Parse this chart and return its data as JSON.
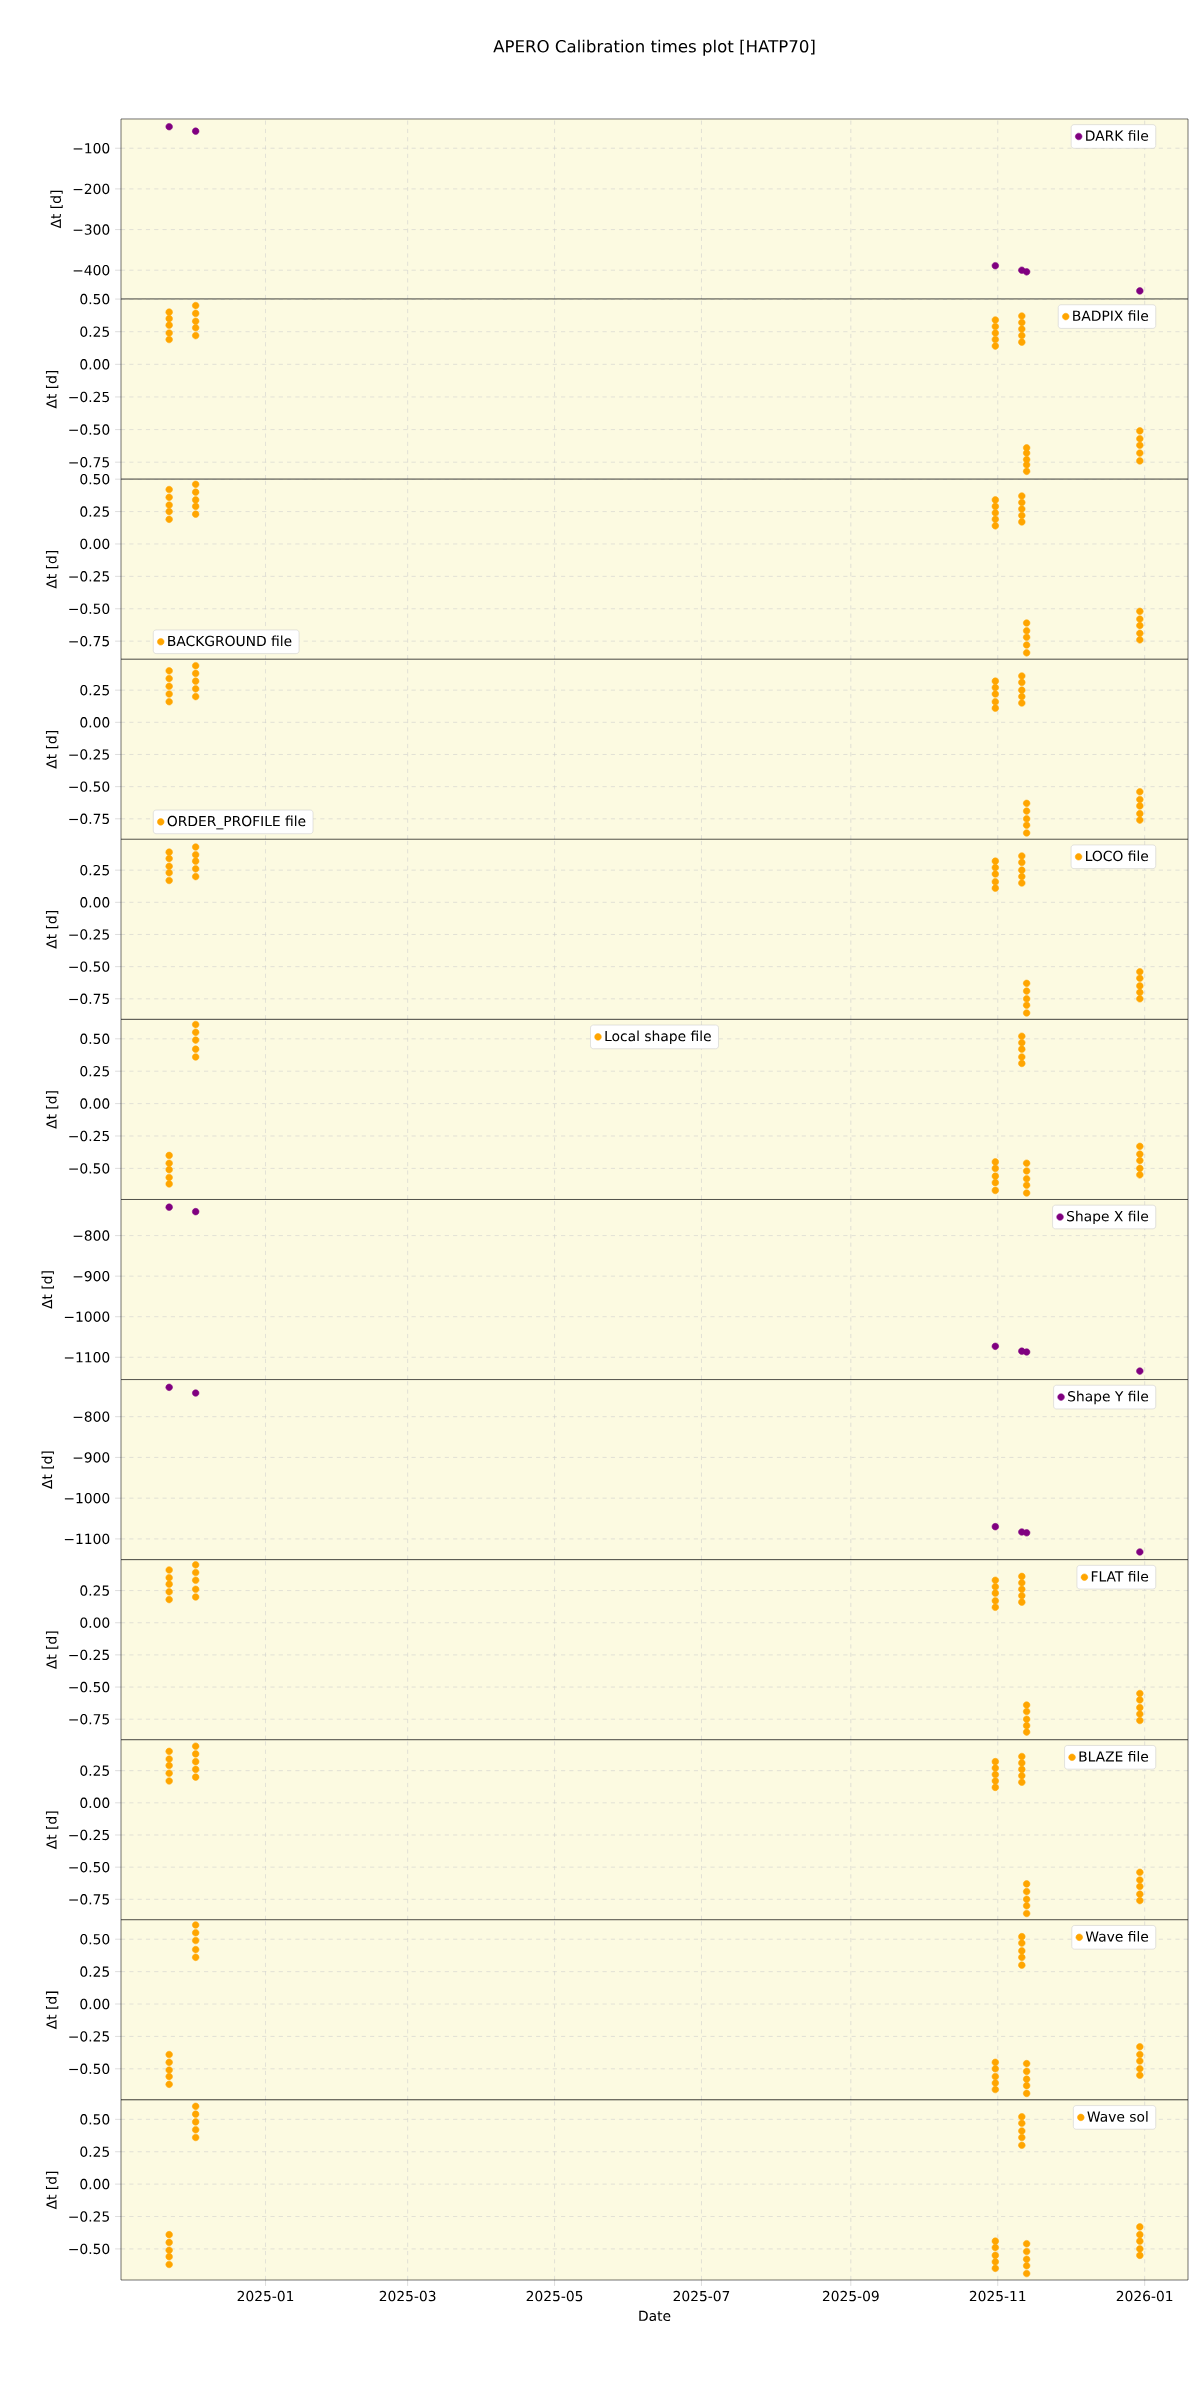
{
  "chart_data": [
    {
      "type": "scatter",
      "title": "APERO Calibration times plot [HATP70]",
      "ylabel": "Δt [d]",
      "x": [
        "2024-11-22",
        "2024-12-03",
        "2025-10-31",
        "2025-11-11",
        "2025-11-13",
        "2025-12-30"
      ],
      "series": [
        {
          "name": "DARK file",
          "color": "#800080",
          "values": [
            -47,
            -58,
            -389,
            -400,
            -404,
            -451
          ]
        }
      ],
      "xlim": [
        "2024-11-02",
        "2026-01-19"
      ],
      "ylim": [
        -471,
        -28
      ],
      "xticks": [
        {
          "value": "2025-01-01",
          "label": null
        },
        {
          "value": "2025-03-01",
          "label": null
        },
        {
          "value": "2025-05-01",
          "label": null
        },
        {
          "value": "2025-07-01",
          "label": null
        },
        {
          "value": "2025-09-01",
          "label": null
        },
        {
          "value": "2025-11-01",
          "label": null
        },
        {
          "value": "2026-01-01",
          "label": null
        }
      ],
      "yticks": [
        {
          "value": -100,
          "label": "−100"
        },
        {
          "value": -200,
          "label": "−200"
        },
        {
          "value": -300,
          "label": "−300"
        },
        {
          "value": -400,
          "label": "−400"
        }
      ],
      "grid": true,
      "legend": "top right",
      "marker": "circle",
      "tick_labels": "y"
    },
    {
      "type": "scatter",
      "ylabel": "Δt [d]",
      "x": [
        "2024-11-22",
        "2024-11-22",
        "2024-11-22",
        "2024-11-22",
        "2024-11-22",
        "2024-12-03",
        "2024-12-03",
        "2024-12-03",
        "2024-12-03",
        "2024-12-03",
        "2025-10-31",
        "2025-10-31",
        "2025-10-31",
        "2025-10-31",
        "2025-10-31",
        "2025-11-11",
        "2025-11-11",
        "2025-11-11",
        "2025-11-11",
        "2025-11-11",
        "2025-11-13",
        "2025-11-13",
        "2025-11-13",
        "2025-11-13",
        "2025-11-13",
        "2025-12-30",
        "2025-12-30",
        "2025-12-30",
        "2025-12-30",
        "2025-12-30"
      ],
      "series": [
        {
          "name": "BADPIX file",
          "color": "#ffa500",
          "values": [
            0.4,
            0.35,
            0.3,
            0.24,
            0.19,
            0.45,
            0.39,
            0.33,
            0.28,
            0.22,
            0.34,
            0.29,
            0.24,
            0.19,
            0.14,
            0.37,
            0.32,
            0.27,
            0.22,
            0.17,
            -0.64,
            -0.68,
            -0.73,
            -0.77,
            -0.82,
            -0.51,
            -0.57,
            -0.62,
            -0.68,
            -0.74
          ]
        }
      ],
      "xlim": [
        "2024-11-02",
        "2026-01-19"
      ],
      "ylim": [
        -0.88,
        0.5
      ],
      "xticks": [
        {
          "value": "2025-01-01",
          "label": null
        },
        {
          "value": "2025-03-01",
          "label": null
        },
        {
          "value": "2025-05-01",
          "label": null
        },
        {
          "value": "2025-07-01",
          "label": null
        },
        {
          "value": "2025-09-01",
          "label": null
        },
        {
          "value": "2025-11-01",
          "label": null
        },
        {
          "value": "2026-01-01",
          "label": null
        }
      ],
      "yticks": [
        {
          "value": 0.5,
          "label": "0.50"
        },
        {
          "value": 0.25,
          "label": "0.25"
        },
        {
          "value": 0,
          "label": "0.00"
        },
        {
          "value": -0.25,
          "label": "−0.25"
        },
        {
          "value": -0.5,
          "label": "−0.50"
        },
        {
          "value": -0.75,
          "label": "−0.75"
        }
      ],
      "grid": true,
      "legend": "top right",
      "marker": "circle",
      "tick_labels": "y"
    },
    {
      "type": "scatter",
      "ylabel": "Δt [d]",
      "x": [
        "2024-11-22",
        "2024-11-22",
        "2024-11-22",
        "2024-11-22",
        "2024-11-22",
        "2024-12-03",
        "2024-12-03",
        "2024-12-03",
        "2024-12-03",
        "2024-12-03",
        "2025-10-31",
        "2025-10-31",
        "2025-10-31",
        "2025-10-31",
        "2025-10-31",
        "2025-11-11",
        "2025-11-11",
        "2025-11-11",
        "2025-11-11",
        "2025-11-11",
        "2025-11-13",
        "2025-11-13",
        "2025-11-13",
        "2025-11-13",
        "2025-11-13",
        "2025-12-30",
        "2025-12-30",
        "2025-12-30",
        "2025-12-30",
        "2025-12-30"
      ],
      "series": [
        {
          "name": "BACKGROUND file",
          "color": "#ffa500",
          "values": [
            0.42,
            0.36,
            0.3,
            0.25,
            0.19,
            0.46,
            0.4,
            0.34,
            0.29,
            0.23,
            0.34,
            0.29,
            0.24,
            0.19,
            0.14,
            0.37,
            0.32,
            0.27,
            0.22,
            0.17,
            -0.61,
            -0.67,
            -0.72,
            -0.78,
            -0.84,
            -0.52,
            -0.58,
            -0.63,
            -0.69,
            -0.74
          ]
        }
      ],
      "xlim": [
        "2024-11-02",
        "2026-01-19"
      ],
      "ylim": [
        -0.89,
        0.5
      ],
      "xticks": [
        {
          "value": "2025-01-01",
          "label": null
        },
        {
          "value": "2025-03-01",
          "label": null
        },
        {
          "value": "2025-05-01",
          "label": null
        },
        {
          "value": "2025-07-01",
          "label": null
        },
        {
          "value": "2025-09-01",
          "label": null
        },
        {
          "value": "2025-11-01",
          "label": null
        },
        {
          "value": "2026-01-01",
          "label": null
        }
      ],
      "yticks": [
        {
          "value": 0.5,
          "label": "0.50"
        },
        {
          "value": 0.25,
          "label": "0.25"
        },
        {
          "value": 0,
          "label": "0.00"
        },
        {
          "value": -0.25,
          "label": "−0.25"
        },
        {
          "value": -0.5,
          "label": "−0.50"
        },
        {
          "value": -0.75,
          "label": "−0.75"
        }
      ],
      "grid": true,
      "legend": "bottom left",
      "marker": "circle",
      "tick_labels": "y"
    },
    {
      "type": "scatter",
      "ylabel": "Δt [d]",
      "x": [
        "2024-11-22",
        "2024-11-22",
        "2024-11-22",
        "2024-11-22",
        "2024-11-22",
        "2024-12-03",
        "2024-12-03",
        "2024-12-03",
        "2024-12-03",
        "2024-12-03",
        "2025-10-31",
        "2025-10-31",
        "2025-10-31",
        "2025-10-31",
        "2025-10-31",
        "2025-11-11",
        "2025-11-11",
        "2025-11-11",
        "2025-11-11",
        "2025-11-11",
        "2025-11-13",
        "2025-11-13",
        "2025-11-13",
        "2025-11-13",
        "2025-11-13",
        "2025-12-30",
        "2025-12-30",
        "2025-12-30",
        "2025-12-30",
        "2025-12-30"
      ],
      "series": [
        {
          "name": "ORDER_PROFILE file",
          "color": "#ffa500",
          "values": [
            0.4,
            0.34,
            0.28,
            0.22,
            0.16,
            0.44,
            0.38,
            0.32,
            0.26,
            0.2,
            0.32,
            0.27,
            0.22,
            0.16,
            0.11,
            0.36,
            0.31,
            0.25,
            0.2,
            0.15,
            -0.63,
            -0.69,
            -0.75,
            -0.8,
            -0.86,
            -0.54,
            -0.6,
            -0.65,
            -0.71,
            -0.76
          ]
        }
      ],
      "xlim": [
        "2024-11-02",
        "2026-01-19"
      ],
      "ylim": [
        -0.91,
        0.49
      ],
      "xticks": [
        {
          "value": "2025-01-01",
          "label": null
        },
        {
          "value": "2025-03-01",
          "label": null
        },
        {
          "value": "2025-05-01",
          "label": null
        },
        {
          "value": "2025-07-01",
          "label": null
        },
        {
          "value": "2025-09-01",
          "label": null
        },
        {
          "value": "2025-11-01",
          "label": null
        },
        {
          "value": "2026-01-01",
          "label": null
        }
      ],
      "yticks": [
        {
          "value": 0.25,
          "label": "0.25"
        },
        {
          "value": 0,
          "label": "0.00"
        },
        {
          "value": -0.25,
          "label": "−0.25"
        },
        {
          "value": -0.5,
          "label": "−0.50"
        },
        {
          "value": -0.75,
          "label": "−0.75"
        }
      ],
      "grid": true,
      "legend": "bottom left",
      "marker": "circle",
      "tick_labels": "y"
    },
    {
      "type": "scatter",
      "ylabel": "Δt [d]",
      "x": [
        "2024-11-22",
        "2024-11-22",
        "2024-11-22",
        "2024-11-22",
        "2024-11-22",
        "2024-12-03",
        "2024-12-03",
        "2024-12-03",
        "2024-12-03",
        "2024-12-03",
        "2025-10-31",
        "2025-10-31",
        "2025-10-31",
        "2025-10-31",
        "2025-10-31",
        "2025-11-11",
        "2025-11-11",
        "2025-11-11",
        "2025-11-11",
        "2025-11-11",
        "2025-11-13",
        "2025-11-13",
        "2025-11-13",
        "2025-11-13",
        "2025-11-13",
        "2025-12-30",
        "2025-12-30",
        "2025-12-30",
        "2025-12-30",
        "2025-12-30"
      ],
      "series": [
        {
          "name": "LOCO file",
          "color": "#ffa500",
          "values": [
            0.39,
            0.34,
            0.28,
            0.23,
            0.17,
            0.43,
            0.37,
            0.32,
            0.26,
            0.2,
            0.32,
            0.27,
            0.22,
            0.16,
            0.11,
            0.36,
            0.31,
            0.25,
            0.2,
            0.15,
            -0.63,
            -0.69,
            -0.75,
            -0.8,
            -0.86,
            -0.54,
            -0.59,
            -0.65,
            -0.7,
            -0.75
          ]
        }
      ],
      "xlim": [
        "2024-11-02",
        "2026-01-19"
      ],
      "ylim": [
        -0.91,
        0.49
      ],
      "xticks": [
        {
          "value": "2025-01-01",
          "label": null
        },
        {
          "value": "2025-03-01",
          "label": null
        },
        {
          "value": "2025-05-01",
          "label": null
        },
        {
          "value": "2025-07-01",
          "label": null
        },
        {
          "value": "2025-09-01",
          "label": null
        },
        {
          "value": "2025-11-01",
          "label": null
        },
        {
          "value": "2026-01-01",
          "label": null
        }
      ],
      "yticks": [
        {
          "value": 0.25,
          "label": "0.25"
        },
        {
          "value": 0,
          "label": "0.00"
        },
        {
          "value": -0.25,
          "label": "−0.25"
        },
        {
          "value": -0.5,
          "label": "−0.50"
        },
        {
          "value": -0.75,
          "label": "−0.75"
        }
      ],
      "grid": true,
      "legend": "top right",
      "marker": "circle",
      "tick_labels": "y"
    },
    {
      "type": "scatter",
      "ylabel": "Δt [d]",
      "x": [
        "2024-11-22",
        "2024-11-22",
        "2024-11-22",
        "2024-11-22",
        "2024-11-22",
        "2024-12-03",
        "2024-12-03",
        "2024-12-03",
        "2024-12-03",
        "2024-12-03",
        "2025-10-31",
        "2025-10-31",
        "2025-10-31",
        "2025-10-31",
        "2025-10-31",
        "2025-11-11",
        "2025-11-11",
        "2025-11-11",
        "2025-11-11",
        "2025-11-11",
        "2025-11-13",
        "2025-11-13",
        "2025-11-13",
        "2025-11-13",
        "2025-11-13",
        "2025-12-30",
        "2025-12-30",
        "2025-12-30",
        "2025-12-30",
        "2025-12-30"
      ],
      "series": [
        {
          "name": "Local shape file",
          "color": "#ffa500",
          "values": [
            -0.4,
            -0.46,
            -0.51,
            -0.57,
            -0.62,
            0.61,
            0.55,
            0.49,
            0.42,
            0.36,
            -0.45,
            -0.5,
            -0.56,
            -0.61,
            -0.67,
            0.52,
            0.47,
            0.42,
            0.36,
            0.31,
            -0.46,
            -0.52,
            -0.58,
            -0.63,
            -0.69,
            -0.33,
            -0.39,
            -0.44,
            -0.5,
            -0.55
          ]
        }
      ],
      "xlim": [
        "2024-11-02",
        "2026-01-19"
      ],
      "ylim": [
        -0.74,
        0.65
      ],
      "xticks": [
        {
          "value": "2025-01-01",
          "label": null
        },
        {
          "value": "2025-03-01",
          "label": null
        },
        {
          "value": "2025-05-01",
          "label": null
        },
        {
          "value": "2025-07-01",
          "label": null
        },
        {
          "value": "2025-09-01",
          "label": null
        },
        {
          "value": "2025-11-01",
          "label": null
        },
        {
          "value": "2026-01-01",
          "label": null
        }
      ],
      "yticks": [
        {
          "value": 0.5,
          "label": "0.50"
        },
        {
          "value": 0.25,
          "label": "0.25"
        },
        {
          "value": 0,
          "label": "0.00"
        },
        {
          "value": -0.25,
          "label": "−0.25"
        },
        {
          "value": -0.5,
          "label": "−0.50"
        }
      ],
      "grid": true,
      "legend": "top",
      "marker": "circle",
      "tick_labels": "y"
    },
    {
      "type": "scatter",
      "ylabel": "Δt [d]",
      "x": [
        "2024-11-22",
        "2024-12-03",
        "2025-10-31",
        "2025-11-11",
        "2025-11-13",
        "2025-12-30"
      ],
      "series": [
        {
          "name": "Shape X file",
          "color": "#800080",
          "values": [
            -730,
            -741,
            -1073,
            -1085,
            -1087,
            -1134
          ]
        }
      ],
      "xlim": [
        "2024-11-02",
        "2026-01-19"
      ],
      "ylim": [
        -1155,
        -711
      ],
      "xticks": [
        {
          "value": "2025-01-01",
          "label": null
        },
        {
          "value": "2025-03-01",
          "label": null
        },
        {
          "value": "2025-05-01",
          "label": null
        },
        {
          "value": "2025-07-01",
          "label": null
        },
        {
          "value": "2025-09-01",
          "label": null
        },
        {
          "value": "2025-11-01",
          "label": null
        },
        {
          "value": "2026-01-01",
          "label": null
        }
      ],
      "yticks": [
        {
          "value": -800,
          "label": "−800"
        },
        {
          "value": -900,
          "label": "−900"
        },
        {
          "value": -1000,
          "label": "−1000"
        },
        {
          "value": -1100,
          "label": "−1100"
        }
      ],
      "grid": true,
      "legend": "top right",
      "marker": "circle",
      "tick_labels": "y"
    },
    {
      "type": "scatter",
      "ylabel": "Δt [d]",
      "x": [
        "2024-11-22",
        "2024-12-03",
        "2025-10-31",
        "2025-11-11",
        "2025-11-13",
        "2025-12-30"
      ],
      "series": [
        {
          "name": "Shape Y file",
          "color": "#800080",
          "values": [
            -728,
            -742,
            -1070,
            -1083,
            -1085,
            -1132
          ]
        }
      ],
      "xlim": [
        "2024-11-02",
        "2026-01-19"
      ],
      "ylim": [
        -1151,
        -709
      ],
      "xticks": [
        {
          "value": "2025-01-01",
          "label": null
        },
        {
          "value": "2025-03-01",
          "label": null
        },
        {
          "value": "2025-05-01",
          "label": null
        },
        {
          "value": "2025-07-01",
          "label": null
        },
        {
          "value": "2025-09-01",
          "label": null
        },
        {
          "value": "2025-11-01",
          "label": null
        },
        {
          "value": "2026-01-01",
          "label": null
        }
      ],
      "yticks": [
        {
          "value": -800,
          "label": "−800"
        },
        {
          "value": -900,
          "label": "−900"
        },
        {
          "value": -1000,
          "label": "−1000"
        },
        {
          "value": -1100,
          "label": "−1100"
        }
      ],
      "grid": true,
      "legend": "top right",
      "marker": "circle",
      "tick_labels": "y"
    },
    {
      "type": "scatter",
      "ylabel": "Δt [d]",
      "x": [
        "2024-11-22",
        "2024-11-22",
        "2024-11-22",
        "2024-11-22",
        "2024-11-22",
        "2024-12-03",
        "2024-12-03",
        "2024-12-03",
        "2024-12-03",
        "2024-12-03",
        "2025-10-31",
        "2025-10-31",
        "2025-10-31",
        "2025-10-31",
        "2025-10-31",
        "2025-11-11",
        "2025-11-11",
        "2025-11-11",
        "2025-11-11",
        "2025-11-11",
        "2025-11-13",
        "2025-11-13",
        "2025-11-13",
        "2025-11-13",
        "2025-11-13",
        "2025-12-30",
        "2025-12-30",
        "2025-12-30",
        "2025-12-30",
        "2025-12-30"
      ],
      "series": [
        {
          "name": "FLAT file",
          "color": "#ffa500",
          "values": [
            0.41,
            0.35,
            0.3,
            0.24,
            0.18,
            0.45,
            0.39,
            0.33,
            0.26,
            0.2,
            0.33,
            0.28,
            0.23,
            0.17,
            0.12,
            0.36,
            0.31,
            0.26,
            0.21,
            0.16,
            -0.64,
            -0.69,
            -0.75,
            -0.8,
            -0.85,
            -0.55,
            -0.6,
            -0.66,
            -0.71,
            -0.76
          ]
        }
      ],
      "xlim": [
        "2024-11-02",
        "2026-01-19"
      ],
      "ylim": [
        -0.91,
        0.49
      ],
      "xticks": [
        {
          "value": "2025-01-01",
          "label": null
        },
        {
          "value": "2025-03-01",
          "label": null
        },
        {
          "value": "2025-05-01",
          "label": null
        },
        {
          "value": "2025-07-01",
          "label": null
        },
        {
          "value": "2025-09-01",
          "label": null
        },
        {
          "value": "2025-11-01",
          "label": null
        },
        {
          "value": "2026-01-01",
          "label": null
        }
      ],
      "yticks": [
        {
          "value": 0.25,
          "label": "0.25"
        },
        {
          "value": 0,
          "label": "0.00"
        },
        {
          "value": -0.25,
          "label": "−0.25"
        },
        {
          "value": -0.5,
          "label": "−0.50"
        },
        {
          "value": -0.75,
          "label": "−0.75"
        }
      ],
      "grid": true,
      "legend": "top right",
      "marker": "circle",
      "tick_labels": "y"
    },
    {
      "type": "scatter",
      "ylabel": "Δt [d]",
      "x": [
        "2024-11-22",
        "2024-11-22",
        "2024-11-22",
        "2024-11-22",
        "2024-11-22",
        "2024-12-03",
        "2024-12-03",
        "2024-12-03",
        "2024-12-03",
        "2024-12-03",
        "2025-10-31",
        "2025-10-31",
        "2025-10-31",
        "2025-10-31",
        "2025-10-31",
        "2025-11-11",
        "2025-11-11",
        "2025-11-11",
        "2025-11-11",
        "2025-11-11",
        "2025-11-13",
        "2025-11-13",
        "2025-11-13",
        "2025-11-13",
        "2025-11-13",
        "2025-12-30",
        "2025-12-30",
        "2025-12-30",
        "2025-12-30",
        "2025-12-30"
      ],
      "series": [
        {
          "name": "BLAZE file",
          "color": "#ffa500",
          "values": [
            0.4,
            0.34,
            0.29,
            0.23,
            0.17,
            0.44,
            0.38,
            0.32,
            0.26,
            0.2,
            0.32,
            0.27,
            0.22,
            0.17,
            0.12,
            0.36,
            0.31,
            0.26,
            0.21,
            0.16,
            -0.63,
            -0.69,
            -0.75,
            -0.8,
            -0.86,
            -0.54,
            -0.6,
            -0.65,
            -0.71,
            -0.76
          ]
        }
      ],
      "xlim": [
        "2024-11-02",
        "2026-01-19"
      ],
      "ylim": [
        -0.91,
        0.49
      ],
      "xticks": [
        {
          "value": "2025-01-01",
          "label": null
        },
        {
          "value": "2025-03-01",
          "label": null
        },
        {
          "value": "2025-05-01",
          "label": null
        },
        {
          "value": "2025-07-01",
          "label": null
        },
        {
          "value": "2025-09-01",
          "label": null
        },
        {
          "value": "2025-11-01",
          "label": null
        },
        {
          "value": "2026-01-01",
          "label": null
        }
      ],
      "yticks": [
        {
          "value": 0.25,
          "label": "0.25"
        },
        {
          "value": 0,
          "label": "0.00"
        },
        {
          "value": -0.25,
          "label": "−0.25"
        },
        {
          "value": -0.5,
          "label": "−0.50"
        },
        {
          "value": -0.75,
          "label": "−0.75"
        }
      ],
      "grid": true,
      "legend": "top right",
      "marker": "circle",
      "tick_labels": "y"
    },
    {
      "type": "scatter",
      "ylabel": "Δt [d]",
      "x": [
        "2024-11-22",
        "2024-11-22",
        "2024-11-22",
        "2024-11-22",
        "2024-11-22",
        "2024-12-03",
        "2024-12-03",
        "2024-12-03",
        "2024-12-03",
        "2024-12-03",
        "2025-10-31",
        "2025-10-31",
        "2025-10-31",
        "2025-10-31",
        "2025-10-31",
        "2025-11-11",
        "2025-11-11",
        "2025-11-11",
        "2025-11-11",
        "2025-11-11",
        "2025-11-13",
        "2025-11-13",
        "2025-11-13",
        "2025-11-13",
        "2025-11-13",
        "2025-12-30",
        "2025-12-30",
        "2025-12-30",
        "2025-12-30",
        "2025-12-30"
      ],
      "series": [
        {
          "name": "Wave file",
          "color": "#ffa500",
          "values": [
            -0.39,
            -0.45,
            -0.51,
            -0.56,
            -0.62,
            0.61,
            0.55,
            0.49,
            0.42,
            0.36,
            -0.45,
            -0.5,
            -0.56,
            -0.61,
            -0.66,
            0.52,
            0.47,
            0.41,
            0.36,
            0.3,
            -0.46,
            -0.52,
            -0.58,
            -0.63,
            -0.69,
            -0.33,
            -0.39,
            -0.44,
            -0.5,
            -0.55
          ]
        }
      ],
      "xlim": [
        "2024-11-02",
        "2026-01-19"
      ],
      "ylim": [
        -0.74,
        0.65
      ],
      "xticks": [
        {
          "value": "2025-01-01",
          "label": null
        },
        {
          "value": "2025-03-01",
          "label": null
        },
        {
          "value": "2025-05-01",
          "label": null
        },
        {
          "value": "2025-07-01",
          "label": null
        },
        {
          "value": "2025-09-01",
          "label": null
        },
        {
          "value": "2025-11-01",
          "label": null
        },
        {
          "value": "2026-01-01",
          "label": null
        }
      ],
      "yticks": [
        {
          "value": 0.5,
          "label": "0.50"
        },
        {
          "value": 0.25,
          "label": "0.25"
        },
        {
          "value": 0,
          "label": "0.00"
        },
        {
          "value": -0.25,
          "label": "−0.25"
        },
        {
          "value": -0.5,
          "label": "−0.50"
        }
      ],
      "grid": true,
      "legend": "top right",
      "marker": "circle",
      "tick_labels": "y"
    },
    {
      "type": "scatter",
      "xlabel": "Date",
      "ylabel": "Δt [d]",
      "x": [
        "2024-11-22",
        "2024-11-22",
        "2024-11-22",
        "2024-11-22",
        "2024-11-22",
        "2024-12-03",
        "2024-12-03",
        "2024-12-03",
        "2024-12-03",
        "2024-12-03",
        "2025-10-31",
        "2025-10-31",
        "2025-10-31",
        "2025-10-31",
        "2025-10-31",
        "2025-11-11",
        "2025-11-11",
        "2025-11-11",
        "2025-11-11",
        "2025-11-11",
        "2025-11-13",
        "2025-11-13",
        "2025-11-13",
        "2025-11-13",
        "2025-11-13",
        "2025-12-30",
        "2025-12-30",
        "2025-12-30",
        "2025-12-30",
        "2025-12-30"
      ],
      "series": [
        {
          "name": "Wave sol",
          "color": "#ffa500",
          "values": [
            -0.39,
            -0.45,
            -0.51,
            -0.56,
            -0.62,
            0.6,
            0.54,
            0.48,
            0.42,
            0.36,
            -0.44,
            -0.49,
            -0.55,
            -0.6,
            -0.65,
            0.52,
            0.47,
            0.41,
            0.36,
            0.3,
            -0.46,
            -0.52,
            -0.58,
            -0.63,
            -0.69,
            -0.33,
            -0.39,
            -0.44,
            -0.5,
            -0.55
          ]
        }
      ],
      "xlim": [
        "2024-11-02",
        "2026-01-19"
      ],
      "ylim": [
        -0.74,
        0.65
      ],
      "xticks": [
        {
          "value": "2025-01-01",
          "label": "2025-01"
        },
        {
          "value": "2025-03-01",
          "label": "2025-03"
        },
        {
          "value": "2025-05-01",
          "label": "2025-05"
        },
        {
          "value": "2025-07-01",
          "label": "2025-07"
        },
        {
          "value": "2025-09-01",
          "label": "2025-09"
        },
        {
          "value": "2025-11-01",
          "label": "2025-11"
        },
        {
          "value": "2026-01-01",
          "label": "2026-01"
        }
      ],
      "yticks": [
        {
          "value": 0.5,
          "label": "0.50"
        },
        {
          "value": 0.25,
          "label": "0.25"
        },
        {
          "value": 0,
          "label": "0.00"
        },
        {
          "value": -0.25,
          "label": "−0.25"
        },
        {
          "value": -0.5,
          "label": "−0.50"
        }
      ],
      "grid": true,
      "legend": "top right",
      "marker": "circle"
    }
  ]
}
